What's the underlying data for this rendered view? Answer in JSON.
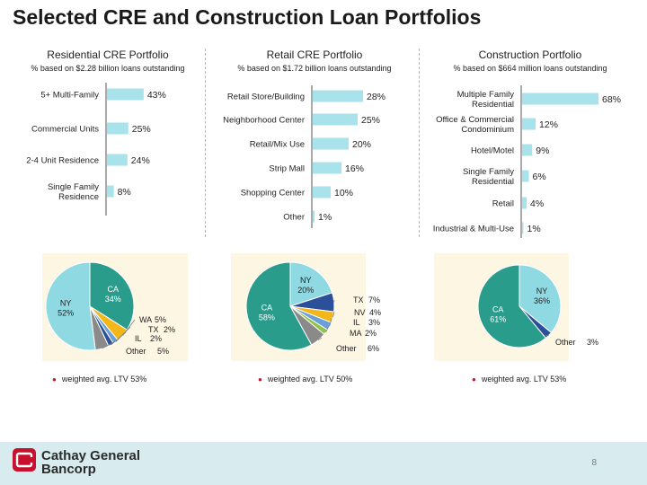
{
  "page": {
    "title": "Selected CRE and Construction Loan Portfolios",
    "page_number": "8",
    "logo": {
      "line1": "Cathay General",
      "line2": "Bancorp"
    }
  },
  "colors": {
    "bar": "#a8e2ea",
    "teal": "#2a9c8c",
    "light_cyan": "#8fd9e3",
    "gold": "#f3b71a",
    "navy": "#2c4f9a",
    "sky": "#6aa0d8",
    "green": "#93c24a",
    "gray": "#8a8a8a",
    "pie_bg": "#fdf6e3",
    "accent_red": "#c8102e"
  },
  "columns": [
    {
      "title": "Residential CRE Portfolio",
      "subtitle": "% based on $2.28 billion loans outstanding",
      "note": "weighted avg. LTV 53%"
    },
    {
      "title": "Retail CRE Portfolio",
      "subtitle": "% based on $1.72 billion loans outstanding",
      "note": "weighted avg. LTV 50%"
    },
    {
      "title": "Construction Portfolio",
      "subtitle": "% based on $664 million loans outstanding",
      "note": "weighted avg. LTV 53%"
    }
  ],
  "chart_data": [
    {
      "type": "bar",
      "orientation": "horizontal",
      "title": "Residential CRE Portfolio",
      "categories": [
        [
          "5+ Multi-Family"
        ],
        [
          "Commercial Units"
        ],
        [
          "2-4 Unit Residence"
        ],
        [
          "Single Family",
          "Residence"
        ]
      ],
      "values": [
        43,
        25,
        24,
        8
      ],
      "labels": [
        "43%",
        "25%",
        "24%",
        "8%"
      ]
    },
    {
      "type": "bar",
      "orientation": "horizontal",
      "title": "Retail CRE Portfolio",
      "categories": [
        [
          "Retail Store/Building"
        ],
        [
          "Neighborhood Center"
        ],
        [
          "Retail/Mix Use"
        ],
        [
          "Strip Mall"
        ],
        [
          "Shopping Center"
        ],
        [
          "Other"
        ]
      ],
      "values": [
        28,
        25,
        20,
        16,
        10,
        1
      ],
      "labels": [
        "28%",
        "25%",
        "20%",
        "16%",
        "10%",
        "1%"
      ]
    },
    {
      "type": "bar",
      "orientation": "horizontal",
      "title": "Construction Portfolio",
      "categories": [
        [
          "Multiple Family",
          "Residential"
        ],
        [
          "Office & Commercial",
          "Condominium"
        ],
        [
          "Hotel/Motel"
        ],
        [
          "Single Family",
          "Residential"
        ],
        [
          "Retail"
        ],
        [
          "Industrial & Multi-Use"
        ]
      ],
      "values": [
        68,
        12,
        9,
        6,
        4,
        1
      ],
      "labels": [
        "68%",
        "12%",
        "9%",
        "6%",
        "4%",
        "1%"
      ]
    },
    {
      "type": "pie",
      "title": "Residential CRE Portfolio by state",
      "slices": [
        {
          "name": "CA",
          "value": 34,
          "label": "34%",
          "color": "#2a9c8c"
        },
        {
          "name": "WA",
          "value": 5,
          "label": "5%",
          "color": "#f3b71a"
        },
        {
          "name": "TX",
          "value": 2,
          "label": "2%",
          "color": "#6aa0d8"
        },
        {
          "name": "IL",
          "value": 2,
          "label": "2%",
          "color": "#2c4f9a"
        },
        {
          "name": "Other",
          "value": 5,
          "label": "5%",
          "color": "#8a8a8a"
        },
        {
          "name": "NY",
          "value": 52,
          "label": "52%",
          "color": "#8fd9e3"
        }
      ]
    },
    {
      "type": "pie",
      "title": "Retail CRE Portfolio by state",
      "slices": [
        {
          "name": "NY",
          "value": 20,
          "label": "20%",
          "color": "#8fd9e3"
        },
        {
          "name": "TX",
          "value": 7,
          "label": "7%",
          "color": "#2c4f9a"
        },
        {
          "name": "NV",
          "value": 4,
          "label": "4%",
          "color": "#f3b71a"
        },
        {
          "name": "IL",
          "value": 3,
          "label": "3%",
          "color": "#6aa0d8"
        },
        {
          "name": "MA",
          "value": 2,
          "label": "2%",
          "color": "#93c24a"
        },
        {
          "name": "Other",
          "value": 6,
          "label": "6%",
          "color": "#8a8a8a"
        },
        {
          "name": "CA",
          "value": 58,
          "label": "58%",
          "color": "#2a9c8c"
        }
      ]
    },
    {
      "type": "pie",
      "title": "Construction Portfolio by state",
      "slices": [
        {
          "name": "NY",
          "value": 36,
          "label": "36%",
          "color": "#8fd9e3"
        },
        {
          "name": "Other",
          "value": 3,
          "label": "3%",
          "color": "#2c4f9a"
        },
        {
          "name": "CA",
          "value": 61,
          "label": "61%",
          "color": "#2a9c8c"
        }
      ]
    }
  ]
}
